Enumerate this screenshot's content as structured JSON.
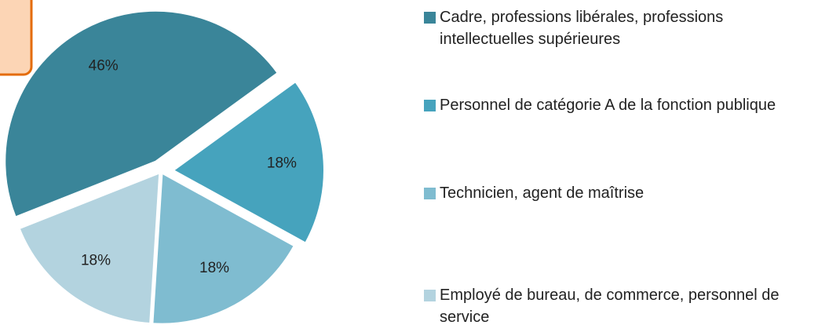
{
  "chart_data": {
    "type": "pie",
    "categories": [
      "Cadre, professions libérales, professions intellectuelles supérieures",
      "Personnel de catégorie A de la fonction publique",
      "Technicien, agent de maîtrise",
      "Employé de bureau, de commerce, personnel de service"
    ],
    "values": [
      46,
      18,
      18,
      18
    ],
    "value_labels": [
      "46%",
      "18%",
      "18%",
      "18%"
    ],
    "colors": [
      "#3a8599",
      "#46a3bd",
      "#7fbcd0",
      "#b3d3df"
    ],
    "legend": "right"
  }
}
